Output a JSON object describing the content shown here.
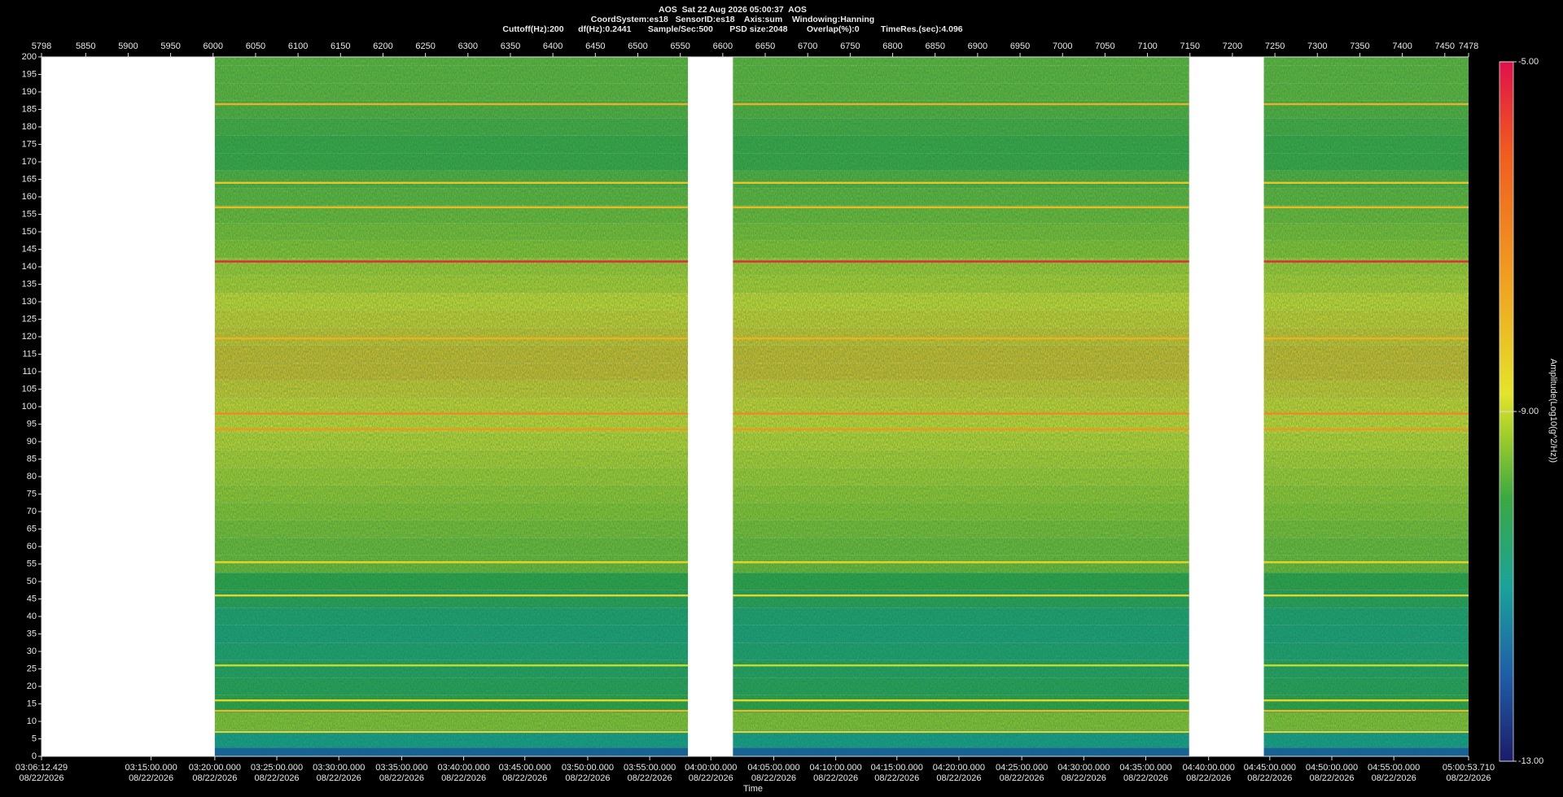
{
  "chart_data": {
    "type": "spectrogram",
    "title_lines": [
      "AOS  Sat 22 Aug 2026 05:00:37  AOS",
      "CoordSystem:es18   SensorID:es18    Axis:sum    Windowing:Hanning",
      "Cuttoff(Hz):200      df(Hz):0.2441       Sample/Sec:500       PSD size:2048        Overlap(%):0         TimeRes.(sec):4.096"
    ],
    "xlabel": "Time",
    "colorbar_label": "Amplitude(Log10(g^2/Hz))",
    "xlim": [
      5798,
      7478
    ],
    "xticks": [
      5798,
      5850,
      5900,
      5950,
      6000,
      6050,
      6100,
      6150,
      6200,
      6250,
      6300,
      6350,
      6400,
      6450,
      6500,
      6550,
      6600,
      6650,
      6700,
      6750,
      6800,
      6850,
      6900,
      6950,
      7000,
      7050,
      7100,
      7150,
      7200,
      7250,
      7300,
      7350,
      7400,
      7450,
      7478
    ],
    "time_ticks": [
      {
        "value": 5798,
        "label": "03:06:12.429",
        "date": "08/22/2026"
      },
      {
        "value": 5927,
        "label": "03:15:00.000",
        "date": "08/22/2026"
      },
      {
        "value": 6002,
        "label": "03:20:00.000",
        "date": "08/22/2026"
      },
      {
        "value": 6075,
        "label": "03:25:00.000",
        "date": "08/22/2026"
      },
      {
        "value": 6148,
        "label": "03:30:00.000",
        "date": "08/22/2026"
      },
      {
        "value": 6222,
        "label": "03:35:00.000",
        "date": "08/22/2026"
      },
      {
        "value": 6295,
        "label": "03:40:00.000",
        "date": "08/22/2026"
      },
      {
        "value": 6367,
        "label": "03:45:00.000",
        "date": "08/22/2026"
      },
      {
        "value": 6441,
        "label": "03:50:00.000",
        "date": "08/22/2026"
      },
      {
        "value": 6514,
        "label": "03:55:00.000",
        "date": "08/22/2026"
      },
      {
        "value": 6586,
        "label": "04:00:00.000",
        "date": "08/22/2026"
      },
      {
        "value": 6660,
        "label": "04:05:00.000",
        "date": "08/22/2026"
      },
      {
        "value": 6733,
        "label": "04:10:00.000",
        "date": "08/22/2026"
      },
      {
        "value": 6805,
        "label": "04:15:00.000",
        "date": "08/22/2026"
      },
      {
        "value": 6878,
        "label": "04:20:00.000",
        "date": "08/22/2026"
      },
      {
        "value": 6952,
        "label": "04:25:00.000",
        "date": "08/22/2026"
      },
      {
        "value": 7025,
        "label": "04:30:00.000",
        "date": "08/22/2026"
      },
      {
        "value": 7098,
        "label": "04:35:00.000",
        "date": "08/22/2026"
      },
      {
        "value": 7172,
        "label": "04:40:00.000",
        "date": "08/22/2026"
      },
      {
        "value": 7244,
        "label": "04:45:00.000",
        "date": "08/22/2026"
      },
      {
        "value": 7317,
        "label": "04:50:00.000",
        "date": "08/22/2026"
      },
      {
        "value": 7390,
        "label": "04:55:00.000",
        "date": "08/22/2026"
      },
      {
        "value": 7478,
        "label": "05:00:53.710",
        "date": "08/22/2026"
      }
    ],
    "ylim": [
      0,
      200
    ],
    "yticks": [
      0,
      5,
      10,
      15,
      20,
      25,
      30,
      35,
      40,
      45,
      50,
      55,
      60,
      65,
      70,
      75,
      80,
      85,
      90,
      95,
      100,
      105,
      110,
      115,
      120,
      125,
      130,
      135,
      140,
      145,
      150,
      155,
      160,
      165,
      170,
      175,
      180,
      185,
      190,
      195,
      200
    ],
    "segments": [
      {
        "start": 6002,
        "end": 6559
      },
      {
        "start": 6612,
        "end": 7149
      },
      {
        "start": 7237,
        "end": 7478
      }
    ],
    "profile": {
      "frequencies": [
        0,
        5,
        10,
        15,
        20,
        25,
        30,
        35,
        40,
        45,
        50,
        55,
        60,
        65,
        70,
        75,
        80,
        85,
        90,
        95,
        100,
        105,
        110,
        115,
        120,
        125,
        130,
        135,
        140,
        145,
        150,
        155,
        160,
        165,
        170,
        175,
        180,
        185,
        190,
        195,
        200
      ],
      "values": [
        -12.0,
        -10.8,
        -9.3,
        -10.0,
        -10.2,
        -10.3,
        -10.5,
        -10.6,
        -10.5,
        -10.2,
        -10.0,
        -9.5,
        -9.5,
        -9.4,
        -9.3,
        -9.2,
        -9.1,
        -9.0,
        -8.9,
        -8.8,
        -8.7,
        -8.5,
        -8.2,
        -8.2,
        -8.4,
        -8.6,
        -8.8,
        -9.0,
        -9.1,
        -9.3,
        -9.4,
        -9.5,
        -9.6,
        -9.7,
        -9.9,
        -9.9,
        -9.8,
        -9.7,
        -9.6,
        -9.6,
        -9.6
      ]
    },
    "lines": {
      "frequencies": [
        141.5,
        98,
        93.5,
        186.5,
        157,
        164,
        119.5,
        55.5,
        46,
        26,
        16,
        13,
        7
      ],
      "values": [
        -5.3,
        -7.0,
        -7.3,
        -7.8,
        -8.0,
        -8.2,
        -7.8,
        -8.5,
        -8.5,
        -9.0,
        -8.5,
        -8.0,
        -8.5
      ]
    },
    "clim": [
      -13,
      -5
    ],
    "cticks": [
      {
        "value": -5,
        "label": "-5.00"
      },
      {
        "value": -9,
        "label": "-9.00"
      },
      {
        "value": -13,
        "label": "-13.00"
      }
    ],
    "colormap": [
      {
        "value": -13,
        "color": "#1c1c6a"
      },
      {
        "value": -12,
        "color": "#1f5fa8"
      },
      {
        "value": -11,
        "color": "#1aa39a"
      },
      {
        "value": -10,
        "color": "#3aa843"
      },
      {
        "value": -9.3,
        "color": "#9ccc2a"
      },
      {
        "value": -8.8,
        "color": "#e4e42a"
      },
      {
        "value": -7.5,
        "color": "#f0a020"
      },
      {
        "value": -6,
        "color": "#f05a20"
      },
      {
        "value": -5,
        "color": "#e0104a"
      }
    ]
  }
}
